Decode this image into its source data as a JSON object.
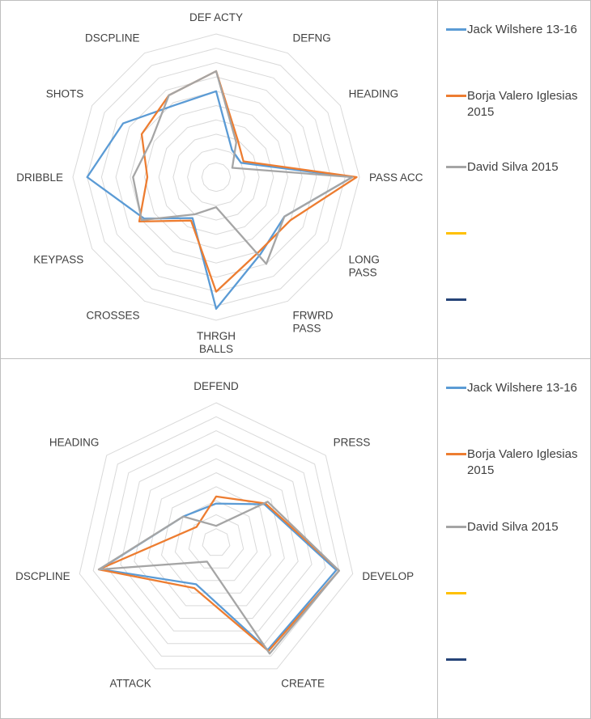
{
  "page": {
    "background": "#ffffff",
    "border_color": "#bfbfbf"
  },
  "colors": {
    "series_blue": "#5B9BD5",
    "series_orange": "#ED7D31",
    "series_gray": "#A5A5A5",
    "series_yellow": "#FFC000",
    "series_darkblue": "#264478",
    "grid": "#D9D9D9",
    "label_text": "#404040"
  },
  "legend": {
    "position": "right",
    "items": [
      {
        "label": "Jack Wilshere 13-16",
        "color": "#5B9BD5"
      },
      {
        "label": "Borja Valero Iglesias 2015",
        "color": "#ED7D31"
      },
      {
        "label": "David Silva 2015",
        "color": "#A5A5A5"
      },
      {
        "label": "",
        "color": "#FFC000"
      },
      {
        "label": "",
        "color": "#264478"
      }
    ]
  },
  "chart_data": [
    {
      "type": "radar",
      "title": "",
      "categories": [
        "DEF ACTY",
        "DEFNG",
        "HEADING",
        "PASS ACC",
        "LONG\nPASS",
        "FRWRD\nPASS",
        "THRGH\nBALLS",
        "CROSSES",
        "KEYPASS",
        "DRIBBLE",
        "SHOTS",
        "DSCPLINE"
      ],
      "max": 100,
      "rings": 10,
      "grid": true,
      "grid_color": "#D9D9D9",
      "legend_position": "right",
      "series": [
        {
          "name": "Jack Wilshere 13-16",
          "color": "#5B9BD5",
          "values": [
            60,
            22,
            20,
            95,
            55,
            62,
            92,
            33,
            58,
            90,
            75,
            58
          ]
        },
        {
          "name": "Borja Valero Iglesias 2015",
          "color": "#ED7D31",
          "values": [
            74,
            30,
            22,
            98,
            60,
            60,
            80,
            35,
            62,
            48,
            60,
            66
          ]
        },
        {
          "name": "David Silva 2015",
          "color": "#A5A5A5",
          "values": [
            74,
            28,
            13,
            95,
            55,
            70,
            21,
            30,
            60,
            58,
            52,
            66
          ]
        }
      ]
    },
    {
      "type": "radar",
      "title": "",
      "categories": [
        "DEFEND",
        "PRESS",
        "DEVELOP",
        "CREATE",
        "ATTACK",
        "DSCPLINE",
        "HEADING"
      ],
      "max": 100,
      "rings": 10,
      "grid": true,
      "grid_color": "#D9D9D9",
      "legend_position": "right",
      "series": [
        {
          "name": "Jack Wilshere 13-16",
          "color": "#5B9BD5",
          "values": [
            28,
            44,
            88,
            85,
            33,
            85,
            30
          ]
        },
        {
          "name": "Borja Valero Iglesias 2015",
          "color": "#ED7D31",
          "values": [
            33,
            45,
            90,
            86,
            36,
            86,
            18
          ]
        },
        {
          "name": "David Silva 2015",
          "color": "#A5A5A5",
          "values": [
            12,
            47,
            90,
            88,
            15,
            86,
            30
          ]
        }
      ]
    }
  ]
}
